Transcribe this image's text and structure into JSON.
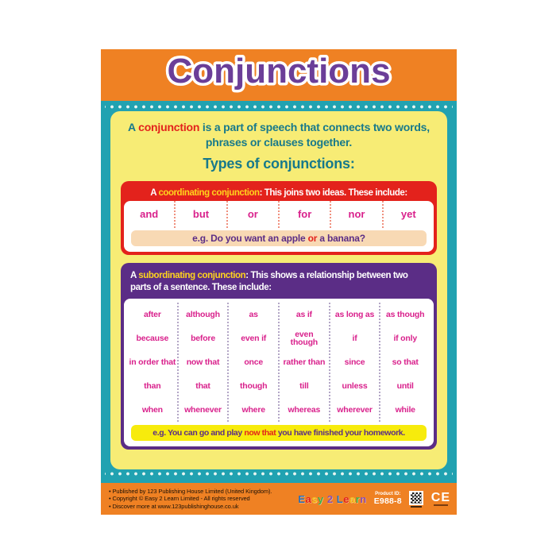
{
  "poster": {
    "title": "Conjunctions",
    "intro": {
      "prefix": "A ",
      "highlight": "conjunction",
      "rest": " is a part of speech that connects two words, phrases or clauses together."
    },
    "types_heading": "Types of conjunctions:",
    "coordinating": {
      "header": {
        "prefix": "A ",
        "highlight": "coordinating conjunction",
        "rest": ": This joins two ideas. These include:"
      },
      "words": [
        "and",
        "but",
        "or",
        "for",
        "nor",
        "yet"
      ],
      "example": {
        "prefix": "e.g. Do you want an apple ",
        "highlight": "or",
        "suffix": " a banana?"
      }
    },
    "subordinating": {
      "header": {
        "prefix": "A ",
        "highlight": "subordinating conjunction",
        "rest": ": This shows a relationship between two parts of a sentence. These include:"
      },
      "rows": [
        [
          "after",
          "although",
          "as",
          "as if",
          "as long as",
          "as though"
        ],
        [
          "because",
          "before",
          "even if",
          "even though",
          "if",
          "if only"
        ],
        [
          "in order that",
          "now that",
          "once",
          "rather than",
          "since",
          "so that"
        ],
        [
          "than",
          "that",
          "though",
          "till",
          "unless",
          "until"
        ],
        [
          "when",
          "whenever",
          "where",
          "whereas",
          "wherever",
          "while"
        ]
      ],
      "example": {
        "prefix": "e.g. You can go and play ",
        "highlight": "now that",
        "suffix": " you have finished your homework."
      }
    },
    "footer": {
      "lines": [
        "• Published by 123 Publishing House Limited (United Kingdom).",
        "• Copyright © Easy 2 Learn Limited - All rights reserved",
        "• Discover more at www.123publishinghouse.co.uk"
      ],
      "logo_text": "Easy 2 Learn",
      "product_id_label": "Product ID:",
      "product_id": "E988-8",
      "ce_mark": "CE"
    },
    "colors": {
      "orange": "#ef8123",
      "teal": "#21a2b1",
      "panel_yellow": "#f7ec75",
      "red": "#e3221c",
      "purple": "#5b2d86",
      "magenta": "#d9218c",
      "gold": "#ffd41d",
      "peach": "#f8d9b4",
      "bright_yellow": "#f7eb0c",
      "body_teal": "#17798b",
      "title_purple": "#6b3e98"
    }
  }
}
